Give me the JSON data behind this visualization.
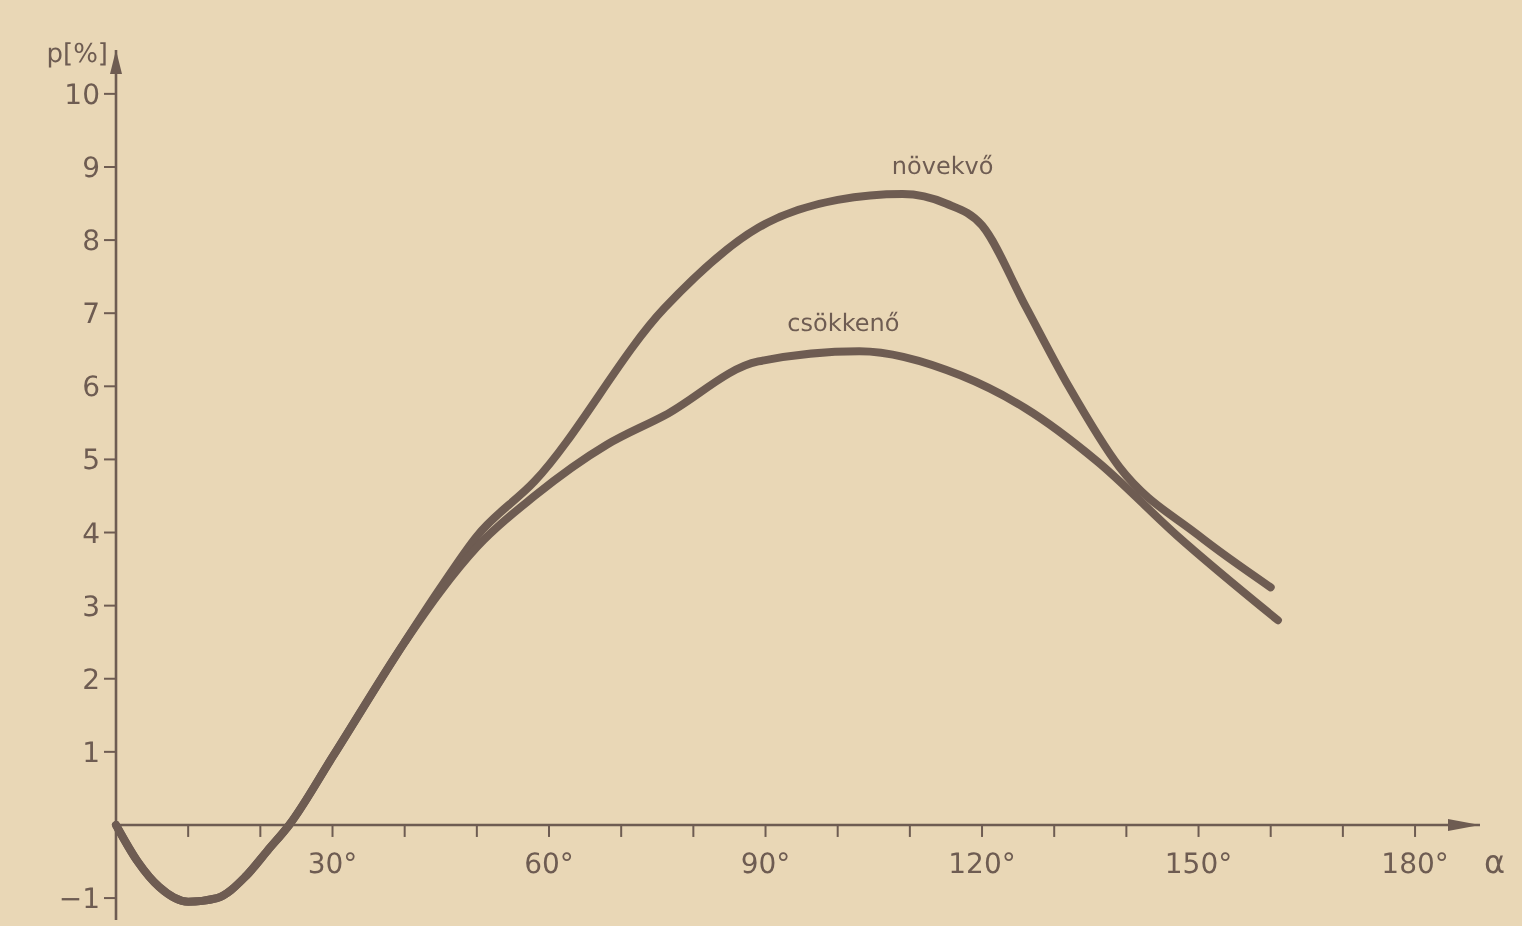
{
  "chart_data": {
    "type": "line",
    "xlabel": "α",
    "ylabel": "p[%]",
    "xlim": [
      0,
      189
    ],
    "ylim": [
      -1.3,
      10.6
    ],
    "xticks": [
      {
        "value": 10,
        "label": null
      },
      {
        "value": 20,
        "label": null
      },
      {
        "value": 30,
        "label": "30°"
      },
      {
        "value": 40,
        "label": null
      },
      {
        "value": 50,
        "label": null
      },
      {
        "value": 60,
        "label": "60°"
      },
      {
        "value": 70,
        "label": null
      },
      {
        "value": 80,
        "label": null
      },
      {
        "value": 90,
        "label": "90°"
      },
      {
        "value": 100,
        "label": null
      },
      {
        "value": 110,
        "label": null
      },
      {
        "value": 120,
        "label": "120°"
      },
      {
        "value": 130,
        "label": null
      },
      {
        "value": 140,
        "label": null
      },
      {
        "value": 150,
        "label": "150°"
      },
      {
        "value": 160,
        "label": null
      },
      {
        "value": 170,
        "label": null
      },
      {
        "value": 180,
        "label": "180°"
      }
    ],
    "yticks": [
      {
        "value": -1,
        "label": "−1"
      },
      1,
      2,
      3,
      4,
      5,
      6,
      7,
      8,
      9,
      10
    ],
    "grid": false,
    "marker": "none",
    "line_style": "solid",
    "series": [
      {
        "name": "növekvő",
        "color": "#6e5c52",
        "x": [
          0,
          3,
          6,
          10,
          14,
          18,
          21,
          24,
          30,
          40,
          45,
          50,
          58,
          76,
          89,
          100,
          109,
          115,
          120,
          126,
          132,
          139,
          150,
          160
        ],
        "values": [
          0,
          -0.5,
          -0.85,
          -1.05,
          -1.0,
          -0.7,
          -0.35,
          0,
          0.93,
          2.5,
          3.25,
          3.95,
          4.7,
          7.07,
          8.17,
          8.55,
          8.63,
          8.5,
          8.2,
          7.1,
          6.0,
          4.9,
          3.96,
          3.25
        ]
      },
      {
        "name": "csökkenő",
        "color": "#6e5c52",
        "x": [
          0,
          3,
          6,
          10,
          14,
          18,
          21,
          24,
          30,
          40,
          45,
          50,
          58,
          68,
          76,
          89,
          103,
          117,
          126,
          136,
          147,
          161
        ],
        "values": [
          0,
          -0.5,
          -0.85,
          -1.05,
          -1.0,
          -0.7,
          -0.35,
          0,
          0.93,
          2.5,
          3.2,
          3.8,
          4.5,
          5.2,
          5.6,
          6.34,
          6.48,
          6.15,
          5.7,
          4.97,
          3.96,
          2.8
        ]
      }
    ]
  }
}
